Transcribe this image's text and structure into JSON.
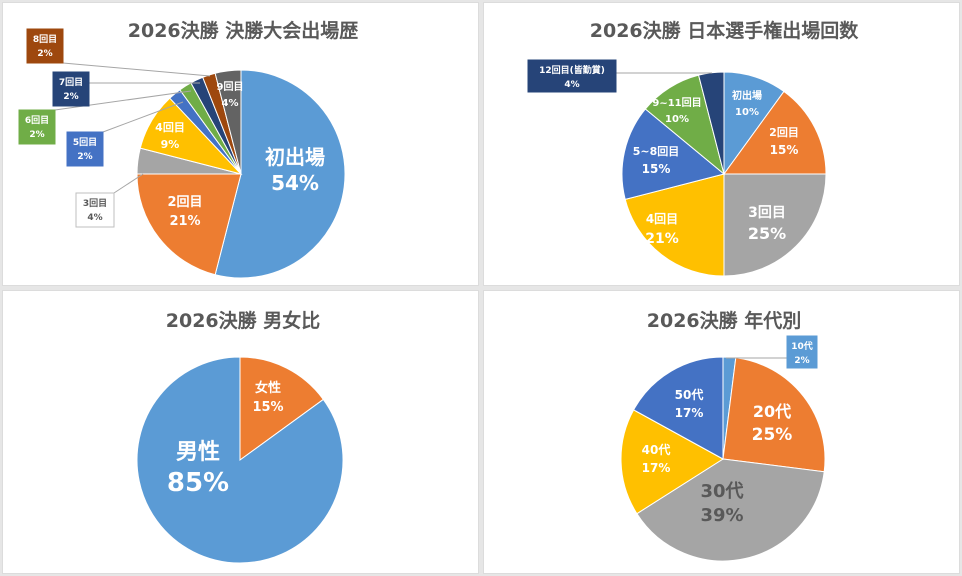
{
  "charts": [
    {
      "title": "2026決勝 決勝大会出場歴",
      "chart_data": {
        "type": "pie",
        "title": "2026決勝 決勝大会出場歴",
        "slices": [
          {
            "label": "初出場",
            "value": 54,
            "display": "54%",
            "color": "#5b9bd5"
          },
          {
            "label": "2回目",
            "value": 21,
            "display": "21%",
            "color": "#ed7d31"
          },
          {
            "label": "3回目",
            "value": 4,
            "display": "4%",
            "color": "#a5a5a5"
          },
          {
            "label": "4回目",
            "value": 9,
            "display": "9%",
            "color": "#ffc000"
          },
          {
            "label": "5回目",
            "value": 2,
            "display": "2%",
            "color": "#4472c4"
          },
          {
            "label": "6回目",
            "value": 2,
            "display": "2%",
            "color": "#70ad47"
          },
          {
            "label": "7回目",
            "value": 2,
            "display": "2%",
            "color": "#264478"
          },
          {
            "label": "8回目",
            "value": 2,
            "display": "2%",
            "color": "#9e480e"
          },
          {
            "label": "9回目",
            "value": 4,
            "display": "4%",
            "color": "#636363"
          }
        ]
      }
    },
    {
      "title": "2026決勝 日本選手権出場回数",
      "chart_data": {
        "type": "pie",
        "title": "2026決勝 日本選手権出場回数",
        "slices": [
          {
            "label": "初出場",
            "value": 10,
            "display": "10%",
            "color": "#5b9bd5"
          },
          {
            "label": "2回目",
            "value": 15,
            "display": "15%",
            "color": "#ed7d31"
          },
          {
            "label": "3回目",
            "value": 25,
            "display": "25%",
            "color": "#a5a5a5"
          },
          {
            "label": "4回目",
            "value": 21,
            "display": "21%",
            "color": "#ffc000"
          },
          {
            "label": "5~8回目",
            "value": 15,
            "display": "15%",
            "color": "#4472c4"
          },
          {
            "label": "9~11回目",
            "value": 10,
            "display": "10%",
            "color": "#70ad47"
          },
          {
            "label": "12回目(皆勤賞)",
            "value": 4,
            "display": "4%",
            "color": "#264478"
          }
        ]
      }
    },
    {
      "title": "2026決勝 男女比",
      "chart_data": {
        "type": "pie",
        "title": "2026決勝 男女比",
        "slices": [
          {
            "label": "女性",
            "value": 15,
            "display": "15%",
            "color": "#ed7d31"
          },
          {
            "label": "男性",
            "value": 85,
            "display": "85%",
            "color": "#5b9bd5"
          }
        ]
      }
    },
    {
      "title": "2026決勝 年代別",
      "chart_data": {
        "type": "pie",
        "title": "2026決勝 年代別",
        "slices": [
          {
            "label": "10代",
            "value": 2,
            "display": "2%",
            "color": "#5b9bd5"
          },
          {
            "label": "20代",
            "value": 25,
            "display": "25%",
            "color": "#ed7d31"
          },
          {
            "label": "30代",
            "value": 39,
            "display": "39%",
            "color": "#a5a5a5"
          },
          {
            "label": "40代",
            "value": 17,
            "display": "17%",
            "color": "#ffc000"
          },
          {
            "label": "50代",
            "value": 17,
            "display": "17%",
            "color": "#4472c4"
          }
        ]
      }
    }
  ]
}
